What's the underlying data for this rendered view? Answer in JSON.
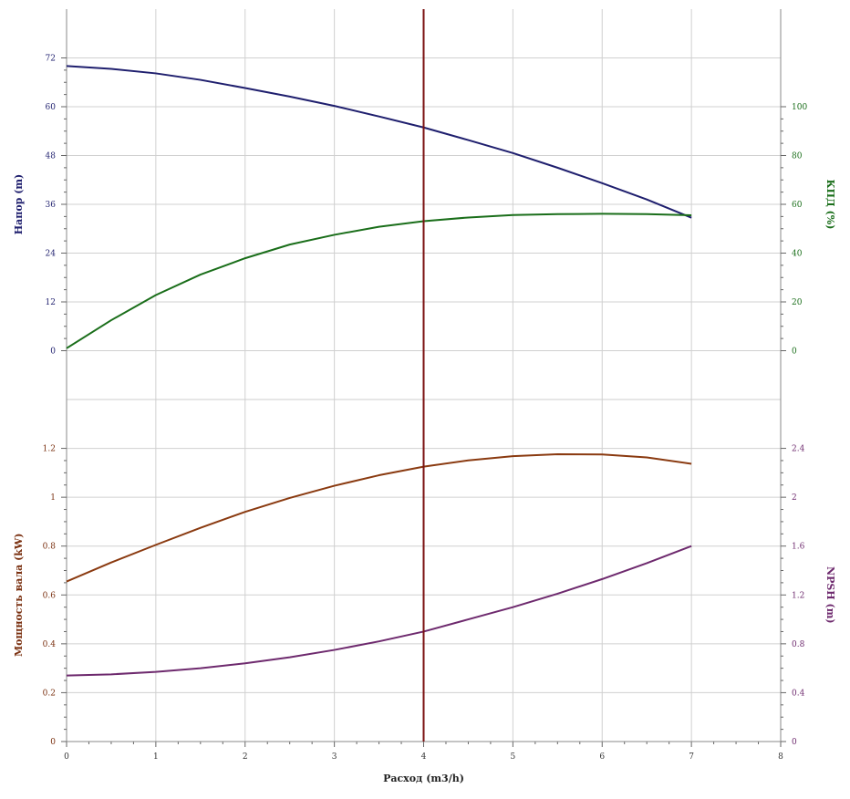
{
  "chart_data": {
    "type": "line",
    "xlabel": "Расход (m3/h)",
    "xlim": [
      0,
      8
    ],
    "x_ticks": [
      "0",
      "1",
      "2",
      "3",
      "4",
      "5",
      "6",
      "7",
      "8"
    ],
    "operating_point_x": 4,
    "operating_line_color": "#7a1010",
    "grid": true,
    "panels": [
      {
        "position": "top",
        "left_axis": {
          "label": "Напор (m)",
          "color": "#1f1f6e",
          "range": [
            -12,
            84
          ],
          "ticks": [
            0,
            12,
            24,
            36,
            48,
            60,
            72
          ],
          "tick_labels": [
            "0",
            "12",
            "24",
            "36",
            "48",
            "60",
            "72"
          ]
        },
        "right_axis": {
          "label": "КПД (%)",
          "color": "#1a6e1a",
          "range": [
            -20,
            140
          ],
          "ticks": [
            0,
            20,
            40,
            60,
            80,
            100
          ],
          "tick_labels": [
            "0",
            "20",
            "40",
            "60",
            "80",
            "100"
          ]
        },
        "series": [
          {
            "axis": "left",
            "color": "#1f1f6e",
            "x": [
              0,
              0.5,
              1,
              1.5,
              2,
              2.5,
              3,
              3.5,
              4,
              4.5,
              5,
              5.5,
              6,
              6.5,
              7
            ],
            "y": [
              70.0,
              69.3,
              68.2,
              66.6,
              64.6,
              62.5,
              60.2,
              57.6,
              54.9,
              51.8,
              48.6,
              45.0,
              41.2,
              37.2,
              32.7
            ]
          },
          {
            "axis": "right",
            "color": "#1a6e1a",
            "x": [
              0,
              0.5,
              1,
              1.5,
              2,
              2.5,
              3,
              3.5,
              4,
              4.5,
              5,
              5.5,
              6,
              6.5,
              7
            ],
            "y": [
              1,
              12.5,
              22.8,
              31.2,
              37.9,
              43.5,
              47.5,
              50.8,
              53.1,
              54.6,
              55.6,
              56.0,
              56.1,
              56.0,
              55.5
            ]
          }
        ]
      },
      {
        "position": "bottom",
        "left_axis": {
          "label": "Мощность вала (kW)",
          "color": "#7a3010",
          "range": [
            0,
            1.4
          ],
          "ticks": [
            0,
            0.2,
            0.4,
            0.6,
            0.8,
            1,
            1.2
          ],
          "tick_labels": [
            "0",
            "0.2",
            "0.4",
            "0.6",
            "0.8",
            "1",
            "1.2"
          ]
        },
        "right_axis": {
          "label": "NPSH (m)",
          "color": "#6e2a6e",
          "range": [
            0,
            2.8
          ],
          "ticks": [
            0,
            0.4,
            0.8,
            1.2,
            1.6,
            2,
            2.4
          ],
          "tick_labels": [
            "0",
            "0.4",
            "0.8",
            "1.2",
            "1.6",
            "2",
            "2.4"
          ]
        },
        "series": [
          {
            "axis": "left",
            "color": "#8a3a10",
            "x": [
              0,
              0.5,
              1,
              1.5,
              2,
              2.5,
              3,
              3.5,
              4,
              4.5,
              5,
              5.5,
              6,
              6.5,
              7
            ],
            "y": [
              0.655,
              0.733,
              0.805,
              0.875,
              0.94,
              0.997,
              1.047,
              1.09,
              1.125,
              1.151,
              1.168,
              1.176,
              1.175,
              1.163,
              1.137
            ]
          },
          {
            "axis": "right",
            "color": "#6e2a6e",
            "x": [
              0,
              0.5,
              1,
              1.5,
              2,
              2.5,
              3,
              3.5,
              4,
              4.5,
              5,
              5.5,
              6,
              6.5,
              7
            ],
            "y": [
              0.54,
              0.55,
              0.57,
              0.6,
              0.64,
              0.69,
              0.75,
              0.82,
              0.9,
              1.0,
              1.1,
              1.21,
              1.33,
              1.46,
              1.6
            ]
          }
        ]
      }
    ]
  }
}
